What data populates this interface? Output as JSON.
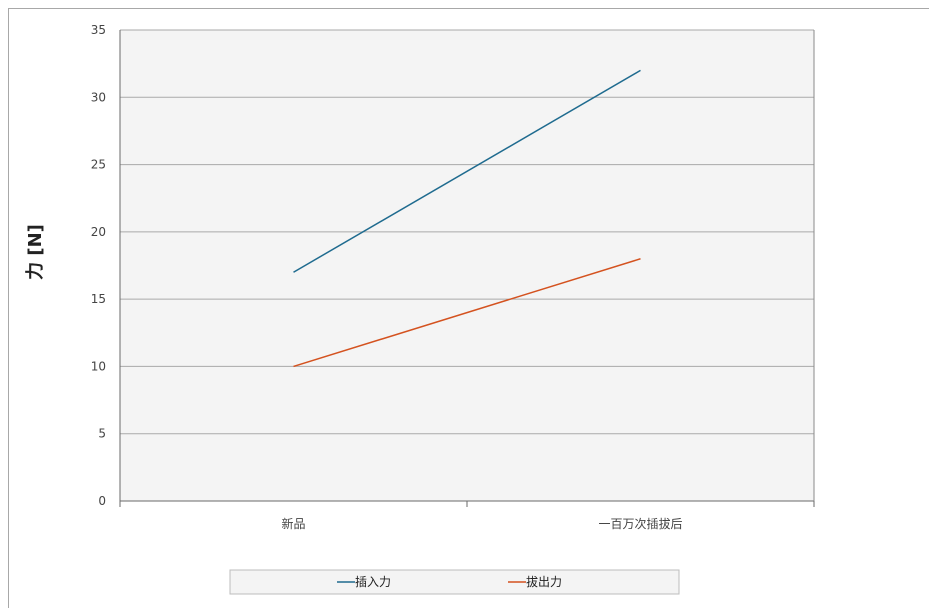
{
  "chart_data": {
    "type": "line",
    "categories": [
      "新品",
      "一百万次插拔后"
    ],
    "series": [
      {
        "name": "插入力",
        "values": [
          17,
          32
        ],
        "color": "#1f6b8f"
      },
      {
        "name": "拔出力",
        "values": [
          10,
          18
        ],
        "color": "#d4521f"
      }
    ],
    "ylabel": "力 [N]",
    "ylim": [
      0,
      35
    ],
    "yticks": [
      0,
      5,
      10,
      15,
      20,
      25,
      30,
      35
    ],
    "grid": true,
    "legend": "bottom"
  }
}
